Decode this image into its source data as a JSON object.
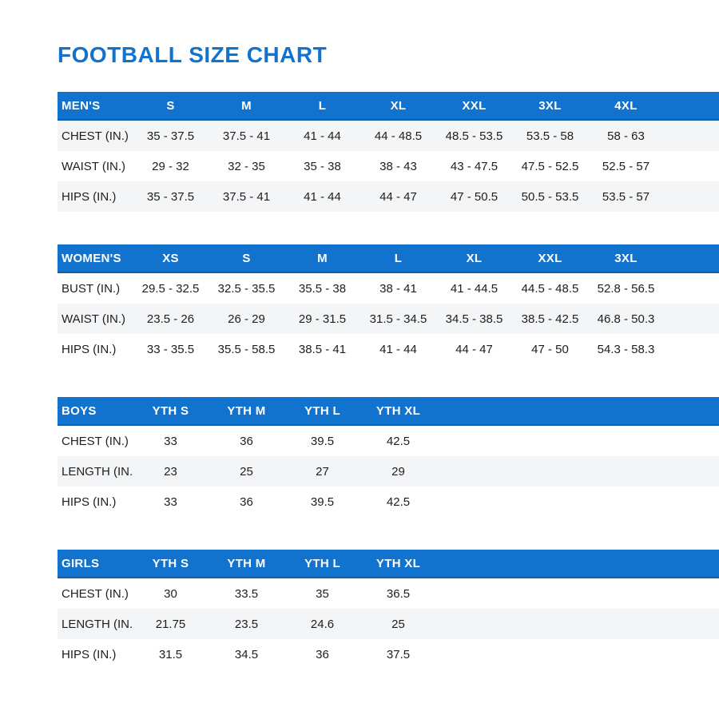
{
  "page": {
    "title": "FOOTBALL SIZE CHART"
  },
  "colors": {
    "title": "#1273CE",
    "header_bg": "#1273CE",
    "header_border": "#0E5FAC",
    "header_text": "#FFFFFF",
    "row_shaded_bg": "#F4F5F7",
    "row_text": "#1E1E1E"
  },
  "tables": [
    {
      "id": "mens",
      "columns": [
        "MEN'S",
        "S",
        "M",
        "L",
        "XL",
        "XXL",
        "3XL",
        "4XL"
      ],
      "shaded_rows": "even",
      "rows": [
        {
          "label": "CHEST (IN.)",
          "values": [
            "35 - 37.5",
            "37.5 - 41",
            "41 - 44",
            "44 - 48.5",
            "48.5 - 53.5",
            "53.5 - 58",
            "58 - 63"
          ]
        },
        {
          "label": "WAIST (IN.)",
          "values": [
            "29 - 32",
            "32 - 35",
            "35 - 38",
            "38 - 43",
            "43 - 47.5",
            "47.5 - 52.5",
            "52.5 - 57"
          ]
        },
        {
          "label": "HIPS (IN.)",
          "values": [
            "35 - 37.5",
            "37.5 - 41",
            "41 - 44",
            "44 - 47",
            "47 - 50.5",
            "50.5 - 53.5",
            "53.5 - 57"
          ]
        }
      ]
    },
    {
      "id": "womens",
      "columns": [
        "WOMEN'S",
        "XS",
        "S",
        "M",
        "L",
        "XL",
        "XXL",
        "3XL"
      ],
      "shaded_rows": "odd",
      "rows": [
        {
          "label": "BUST (IN.)",
          "values": [
            "29.5 - 32.5",
            "32.5 - 35.5",
            "35.5 - 38",
            "38 - 41",
            "41 - 44.5",
            "44.5 - 48.5",
            "52.8 - 56.5"
          ]
        },
        {
          "label": "WAIST (IN.)",
          "values": [
            "23.5 - 26",
            "26 - 29",
            "29 - 31.5",
            "31.5 - 34.5",
            "34.5 - 38.5",
            "38.5 - 42.5",
            "46.8 - 50.3"
          ]
        },
        {
          "label": "HIPS (IN.)",
          "values": [
            "33 - 35.5",
            "35.5 - 58.5",
            "38.5 - 41",
            "41 - 44",
            "44 - 47",
            "47 - 50",
            "54.3 - 58.3"
          ]
        }
      ]
    },
    {
      "id": "boys",
      "columns": [
        "BOYS",
        "YTH S",
        "YTH M",
        "YTH L",
        "YTH XL"
      ],
      "shaded_rows": "odd",
      "rows": [
        {
          "label": "CHEST (IN.)",
          "values": [
            "33",
            "36",
            "39.5",
            "42.5"
          ]
        },
        {
          "label": "LENGTH (IN.)",
          "values": [
            "23",
            "25",
            "27",
            "29"
          ]
        },
        {
          "label": "HIPS (IN.)",
          "values": [
            "33",
            "36",
            "39.5",
            "42.5"
          ]
        }
      ]
    },
    {
      "id": "girls",
      "columns": [
        "GIRLS",
        "YTH S",
        "YTH M",
        "YTH L",
        "YTH XL"
      ],
      "shaded_rows": "odd",
      "rows": [
        {
          "label": "CHEST (IN.)",
          "values": [
            "30",
            "33.5",
            "35",
            "36.5"
          ]
        },
        {
          "label": "LENGTH (IN.)",
          "values": [
            "21.75",
            "23.5",
            "24.6",
            "25"
          ]
        },
        {
          "label": "HIPS (IN.)",
          "values": [
            "31.5",
            "34.5",
            "36",
            "37.5"
          ]
        }
      ]
    }
  ]
}
